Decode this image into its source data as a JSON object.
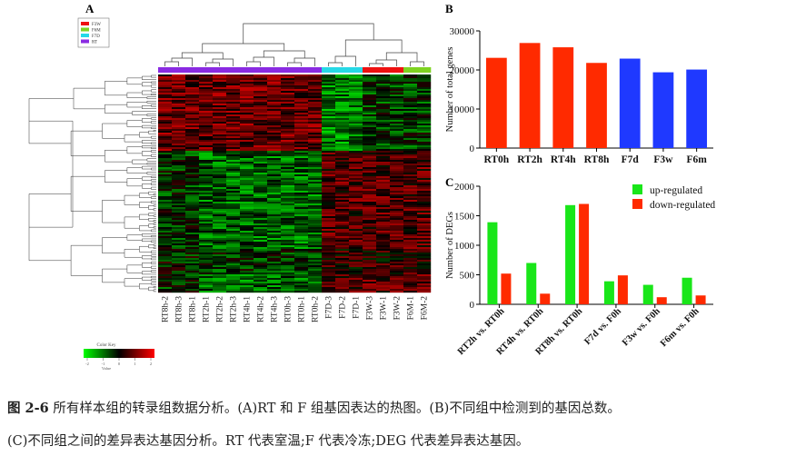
{
  "figure_caption": {
    "number": "图 2-6",
    "line1": "所有样本组的转录组数据分析。(A)RT 和 F 组基因表达的热图。(B)不同组中检测到的基因总数。",
    "line2": "(C)不同组之间的差异表达基因分析。RT 代表室温;F 代表冷冻;DEG 代表差异表达基因。"
  },
  "panels": {
    "a": "A",
    "b": "B",
    "c": "C"
  },
  "colors": {
    "rt_bar": "#ff2a00",
    "f_bar": "#1f39ff",
    "up": "#19e619",
    "down": "#ff2a00",
    "group_rt": "#8a2be2",
    "group_f3w": "#ee1111",
    "group_f6m": "#7ed321",
    "group_f7d": "#26d9e6",
    "heat_low": "#00ff00",
    "heat_mid": "#000000",
    "heat_high": "#ff0000"
  },
  "chart_data": [
    {
      "type": "heatmap",
      "legend": [
        {
          "label": "F3W",
          "color": "#ee1111"
        },
        {
          "label": "F6M",
          "color": "#7ed321"
        },
        {
          "label": "F7D",
          "color": "#26d9e6"
        },
        {
          "label": "RT",
          "color": "#8a2be2"
        }
      ],
      "columns": [
        "RT8h-2",
        "RT8h-3",
        "RT8h-1",
        "RT2h-1",
        "RT2h-2",
        "RT2h-3",
        "RT4h-1",
        "RT4h-2",
        "RT4h-3",
        "RT0h-3",
        "RT0h-1",
        "RT0h-2",
        "F7D-3",
        "F7D-2",
        "F7D-1",
        "F3W-3",
        "F3W-1",
        "F3W-2",
        "F6M-1",
        "F6M-2"
      ],
      "column_groups": [
        "RT",
        "RT",
        "RT",
        "RT",
        "RT",
        "RT",
        "RT",
        "RT",
        "RT",
        "RT",
        "RT",
        "RT",
        "F7D",
        "F7D",
        "F7D",
        "F3W",
        "F3W",
        "F3W",
        "F6M",
        "F6M"
      ],
      "color_key": {
        "title": "Color Key",
        "axis_label": "Value",
        "ticks": [
          "-2",
          "-1",
          "0",
          "1",
          "2"
        ]
      }
    },
    {
      "type": "bar",
      "categories": [
        "RT0h",
        "RT2h",
        "RT4h",
        "RT8h",
        "F7d",
        "F3w",
        "F6m"
      ],
      "values": [
        23100,
        26900,
        25800,
        21800,
        22900,
        19400,
        20100
      ],
      "bar_colors": [
        "#ff2a00",
        "#ff2a00",
        "#ff2a00",
        "#ff2a00",
        "#1f39ff",
        "#1f39ff",
        "#1f39ff"
      ],
      "ylabel": "Number of total genes",
      "ylim": [
        0,
        30000
      ],
      "yticks": [
        "0",
        "10000",
        "20000",
        "30000"
      ]
    },
    {
      "type": "bar",
      "categories": [
        "RT2h vs. RT0h",
        "RT4h vs. RT0h",
        "RT8h vs. RT0h",
        "F7d vs. F0h",
        "F3w vs. F0h",
        "F6m vs. F0h"
      ],
      "series": [
        {
          "name": "up-regulated",
          "values": [
            1390,
            700,
            1680,
            390,
            330,
            450
          ]
        },
        {
          "name": "down-regulated",
          "values": [
            520,
            180,
            1700,
            490,
            120,
            150
          ]
        }
      ],
      "ylabel": "Number of DEGs",
      "ylim": [
        0,
        2000
      ],
      "yticks": [
        "0",
        "500",
        "1000",
        "1500",
        "2000"
      ],
      "legend_position": "top-right"
    }
  ]
}
